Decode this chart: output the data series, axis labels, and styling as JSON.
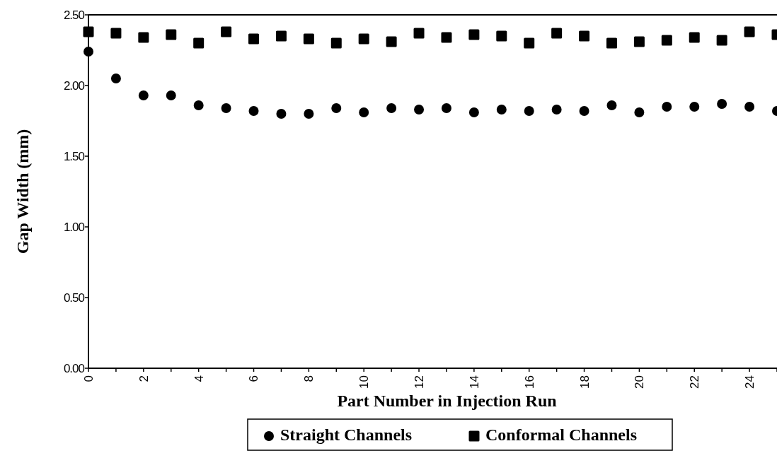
{
  "chart_data": {
    "type": "scatter",
    "xlabel": "Part Number in Injection Run",
    "ylabel": "Gap Width (mm)",
    "x": [
      0,
      1,
      2,
      3,
      4,
      5,
      6,
      7,
      8,
      9,
      10,
      11,
      12,
      13,
      14,
      15,
      16,
      17,
      18,
      19,
      20,
      21,
      22,
      23,
      24,
      25
    ],
    "series": [
      {
        "name": "Straight Channels",
        "color": "#000000",
        "marker": "circle",
        "values": [
          2.24,
          2.05,
          1.93,
          1.93,
          1.86,
          1.84,
          1.82,
          1.8,
          1.8,
          1.84,
          1.81,
          1.84,
          1.83,
          1.84,
          1.81,
          1.83,
          1.82,
          1.83,
          1.82,
          1.86,
          1.81,
          1.85,
          1.85,
          1.87,
          1.85,
          1.82
        ]
      },
      {
        "name": "Conformal Channels",
        "color": "#000000",
        "marker": "square",
        "values": [
          2.38,
          2.37,
          2.34,
          2.36,
          2.3,
          2.38,
          2.33,
          2.35,
          2.33,
          2.3,
          2.33,
          2.31,
          2.37,
          2.34,
          2.36,
          2.35,
          2.3,
          2.37,
          2.35,
          2.3,
          2.31,
          2.32,
          2.34,
          2.32,
          2.38,
          2.36
        ]
      }
    ],
    "xlim": [
      0,
      25
    ],
    "xticks": [
      0,
      2,
      4,
      6,
      8,
      10,
      12,
      14,
      16,
      18,
      20,
      22,
      24
    ],
    "ylim": [
      0,
      2.5
    ],
    "yticks": [
      {
        "value": 0,
        "label": "0.00"
      },
      {
        "value": 0.5,
        "label": "0.50"
      },
      {
        "value": 1,
        "label": "1.00"
      },
      {
        "value": 1.5,
        "label": "1.50"
      },
      {
        "value": 2,
        "label": "2.00"
      },
      {
        "value": 2.5,
        "label": "2.50"
      }
    ],
    "grid": false,
    "legend": "bottom"
  }
}
